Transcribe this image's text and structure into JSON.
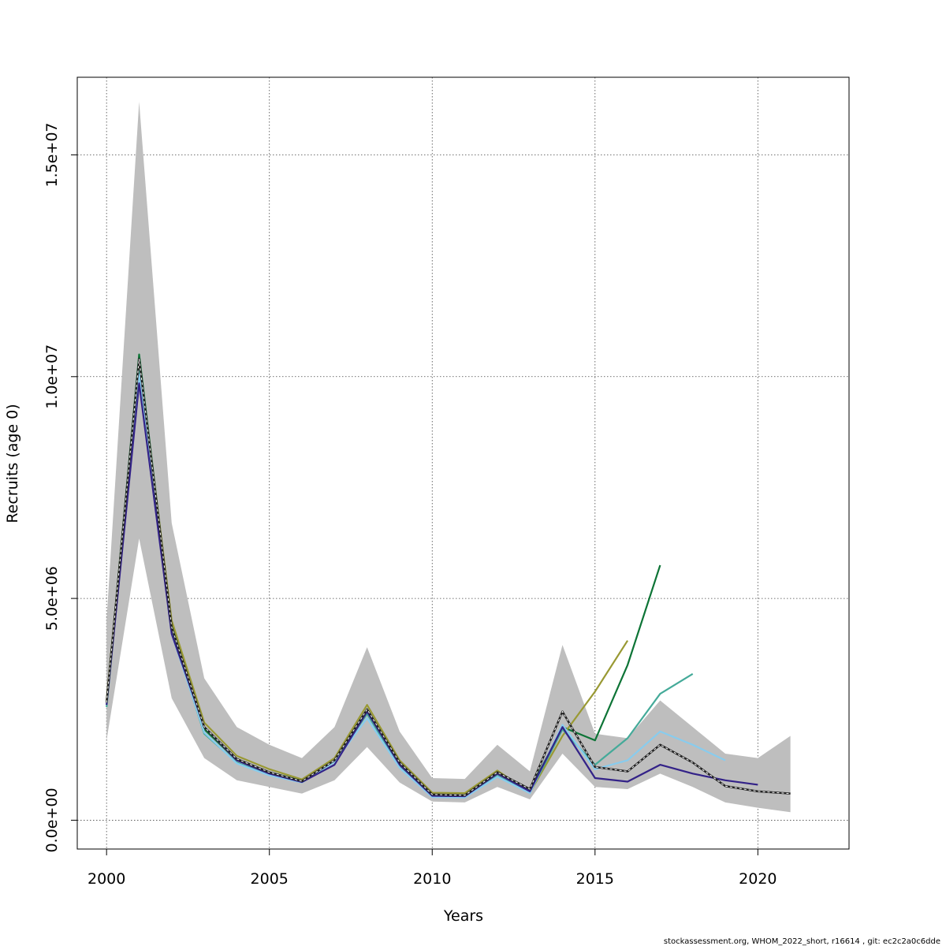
{
  "chart_data": {
    "type": "line",
    "xlabel": "Years",
    "ylabel": "Recruits (age 0)",
    "xlim": [
      1999.1,
      2022.8
    ],
    "ylim": [
      -650000,
      16750000
    ],
    "x_ticks": [
      2000,
      2005,
      2010,
      2015,
      2020
    ],
    "x_tick_labels": [
      "2000",
      "2005",
      "2010",
      "2015",
      "2020"
    ],
    "y_ticks": [
      0,
      5000000,
      10000000,
      15000000
    ],
    "y_tick_labels": [
      "0.0e+00",
      "5.0e+06",
      "1.0e+07",
      "1.5e+07"
    ],
    "grid": true,
    "footer": "stockassessment.org, WHOM_2022_short, r16614 , git: ec2c2a0c6dde",
    "confidence_band": {
      "color": "#bebebe",
      "x": [
        2000,
        2001,
        2002,
        2003,
        2004,
        2005,
        2006,
        2007,
        2008,
        2009,
        2010,
        2011,
        2012,
        2013,
        2014,
        2015,
        2016,
        2017,
        2018,
        2019,
        2020,
        2021
      ],
      "upper": [
        4500000,
        16200000,
        6700000,
        3200000,
        2100000,
        1700000,
        1400000,
        2100000,
        3900000,
        2000000,
        950000,
        930000,
        1700000,
        1100000,
        3950000,
        1950000,
        1850000,
        2700000,
        2100000,
        1500000,
        1400000,
        1900000
      ],
      "lower": [
        1800000,
        6350000,
        2750000,
        1400000,
        900000,
        750000,
        600000,
        900000,
        1650000,
        850000,
        420000,
        400000,
        750000,
        470000,
        1500000,
        750000,
        700000,
        1050000,
        750000,
        400000,
        280000,
        180000
      ]
    },
    "series": [
      {
        "color": "#0d7436",
        "x": [
          2000,
          2001,
          2002,
          2003,
          2004,
          2005,
          2006,
          2007,
          2008,
          2009,
          2010,
          2011,
          2012,
          2013,
          2014,
          2015,
          2016,
          2017
        ],
        "values": [
          2650000,
          10500000,
          4400000,
          2050000,
          1350000,
          1080000,
          890000,
          1350000,
          2500000,
          1250000,
          550000,
          540000,
          1050000,
          680000,
          2100000,
          1800000,
          3500000,
          5750000
        ]
      },
      {
        "color": "#999933",
        "x": [
          2000,
          2001,
          2002,
          2003,
          2004,
          2005,
          2006,
          2007,
          2008,
          2009,
          2010,
          2011,
          2012,
          2013,
          2014,
          2015,
          2016
        ],
        "values": [
          2700000,
          10350000,
          4500000,
          2200000,
          1450000,
          1150000,
          920000,
          1400000,
          2600000,
          1350000,
          620000,
          610000,
          1120000,
          620000,
          1900000,
          2900000,
          4050000
        ]
      },
      {
        "color": "#44aa99",
        "x": [
          2000,
          2001,
          2002,
          2003,
          2004,
          2005,
          2006,
          2007,
          2008,
          2009,
          2010,
          2011,
          2012,
          2013,
          2014,
          2015,
          2016,
          2017,
          2018
        ],
        "values": [
          2550000,
          10150000,
          4250000,
          1950000,
          1300000,
          1020000,
          860000,
          1320000,
          2400000,
          1200000,
          530000,
          520000,
          1000000,
          620000,
          2050000,
          1250000,
          1850000,
          2850000,
          3300000
        ]
      },
      {
        "color": "#88ccee",
        "x": [
          2000,
          2001,
          2002,
          2003,
          2004,
          2005,
          2006,
          2007,
          2008,
          2009,
          2010,
          2011,
          2012,
          2013,
          2014,
          2015,
          2016,
          2017,
          2018,
          2019
        ],
        "values": [
          2600000,
          10050000,
          4200000,
          1980000,
          1280000,
          1010000,
          850000,
          1310000,
          2300000,
          1180000,
          520000,
          510000,
          980000,
          610000,
          2150000,
          1150000,
          1350000,
          2000000,
          1700000,
          1350000
        ]
      },
      {
        "color": "#332288",
        "x": [
          2000,
          2001,
          2002,
          2003,
          2004,
          2005,
          2006,
          2007,
          2008,
          2009,
          2010,
          2011,
          2012,
          2013,
          2014,
          2015,
          2016,
          2017,
          2018,
          2019,
          2020
        ],
        "values": [
          2600000,
          9850000,
          4200000,
          2100000,
          1350000,
          1050000,
          860000,
          1250000,
          2450000,
          1250000,
          550000,
          540000,
          1050000,
          650000,
          2100000,
          950000,
          870000,
          1250000,
          1050000,
          900000,
          800000
        ]
      },
      {
        "color": "#222222",
        "dashed": true,
        "x": [
          2000,
          2001,
          2002,
          2003,
          2004,
          2005,
          2006,
          2007,
          2008,
          2009,
          2010,
          2011,
          2012,
          2013,
          2014,
          2015,
          2016,
          2017,
          2018,
          2019,
          2020,
          2021
        ],
        "values": [
          2650000,
          10400000,
          4350000,
          2100000,
          1380000,
          1080000,
          880000,
          1350000,
          2500000,
          1300000,
          580000,
          560000,
          1080000,
          700000,
          2450000,
          1200000,
          1100000,
          1700000,
          1300000,
          770000,
          650000,
          600000
        ]
      }
    ]
  }
}
